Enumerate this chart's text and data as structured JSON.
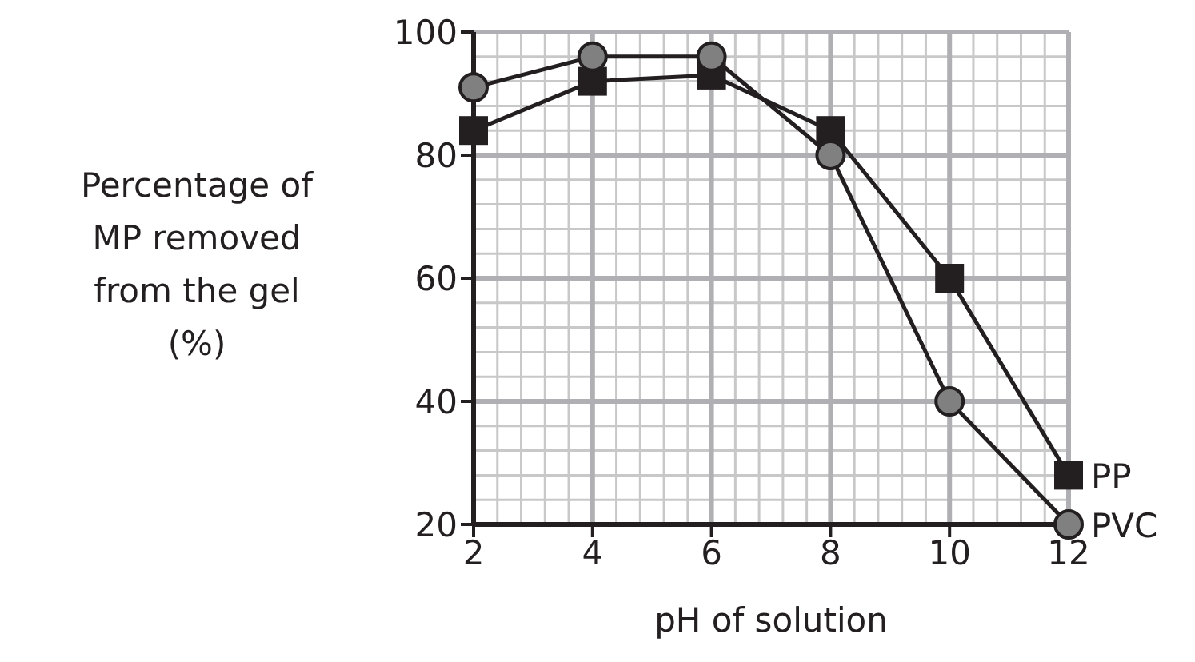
{
  "chart_data": {
    "type": "line",
    "xlabel": "pH of solution",
    "ylabel": "Percentage of\nMP removed\nfrom the gel\n(%)",
    "x": [
      2,
      4,
      6,
      8,
      10,
      12
    ],
    "series": [
      {
        "name": "PP",
        "color": "#231f20",
        "marker": "square",
        "values": [
          84,
          92,
          93,
          84,
          60,
          28
        ]
      },
      {
        "name": "PVC",
        "color": "#808080",
        "marker": "circle",
        "values": [
          91,
          96,
          96,
          80,
          40,
          20
        ]
      }
    ],
    "xlim": [
      2,
      12
    ],
    "xticks": [
      2,
      4,
      6,
      8,
      10,
      12
    ],
    "ylim": [
      20,
      100
    ],
    "yticks": [
      20,
      40,
      60,
      80,
      100
    ],
    "grid": true,
    "legend": false,
    "line_style": "solid"
  }
}
